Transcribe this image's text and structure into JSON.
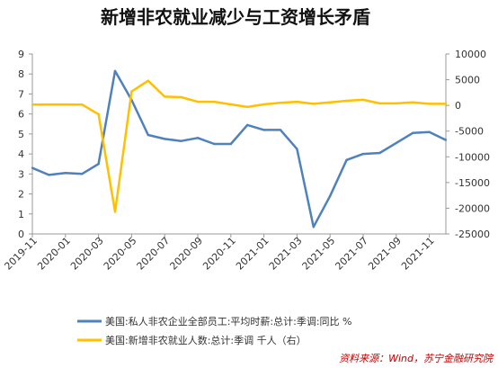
{
  "chart_data": {
    "type": "line",
    "title": "新增非农就业减少与工资增长矛盾",
    "x": [
      "2019-11",
      "2019-12",
      "2020-01",
      "2020-02",
      "2020-03",
      "2020-04",
      "2020-05",
      "2020-06",
      "2020-07",
      "2020-08",
      "2020-09",
      "2020-10",
      "2020-11",
      "2020-12",
      "2021-01",
      "2021-02",
      "2021-03",
      "2021-04",
      "2021-05",
      "2021-06",
      "2021-07",
      "2021-08",
      "2021-09",
      "2021-10",
      "2021-11",
      "2021-12"
    ],
    "x_tick_labels": [
      "2019-11",
      "2020-01",
      "2020-03",
      "2020-05",
      "2020-07",
      "2020-09",
      "2020-11",
      "2021-01",
      "2021-03",
      "2021-05",
      "2021-07",
      "2021-09",
      "2021-11"
    ],
    "y_left": {
      "min": 0,
      "max": 9,
      "ticks": [
        0,
        1,
        2,
        3,
        4,
        5,
        6,
        7,
        8,
        9
      ]
    },
    "y_right": {
      "min": -25000,
      "max": 10000,
      "ticks": [
        10000,
        5000,
        0,
        -5000,
        -10000,
        -15000,
        -20000,
        -25000
      ]
    },
    "series": [
      {
        "name": "美国:私人非农企业全部员工:平均时薪:总计:季调:同比 %",
        "axis": "left",
        "color": "#4f81bd",
        "values": [
          3.3,
          2.95,
          3.05,
          3.0,
          3.5,
          8.15,
          6.7,
          4.95,
          4.75,
          4.65,
          4.8,
          4.5,
          4.5,
          5.45,
          5.2,
          5.2,
          4.25,
          0.35,
          1.9,
          3.7,
          4.0,
          4.05,
          4.55,
          5.05,
          5.1,
          4.7
        ]
      },
      {
        "name": "美国:新增非农就业人数:总计:季调 千人（右）",
        "axis": "right",
        "color": "#ffc000",
        "values": [
          150,
          180,
          190,
          170,
          -1700,
          -20700,
          2700,
          4800,
          1700,
          1600,
          700,
          700,
          200,
          -300,
          200,
          500,
          700,
          300,
          600,
          900,
          1100,
          400,
          400,
          600,
          300,
          300
        ]
      }
    ]
  },
  "source": "资料来源：Wind，苏宁金融研究院"
}
